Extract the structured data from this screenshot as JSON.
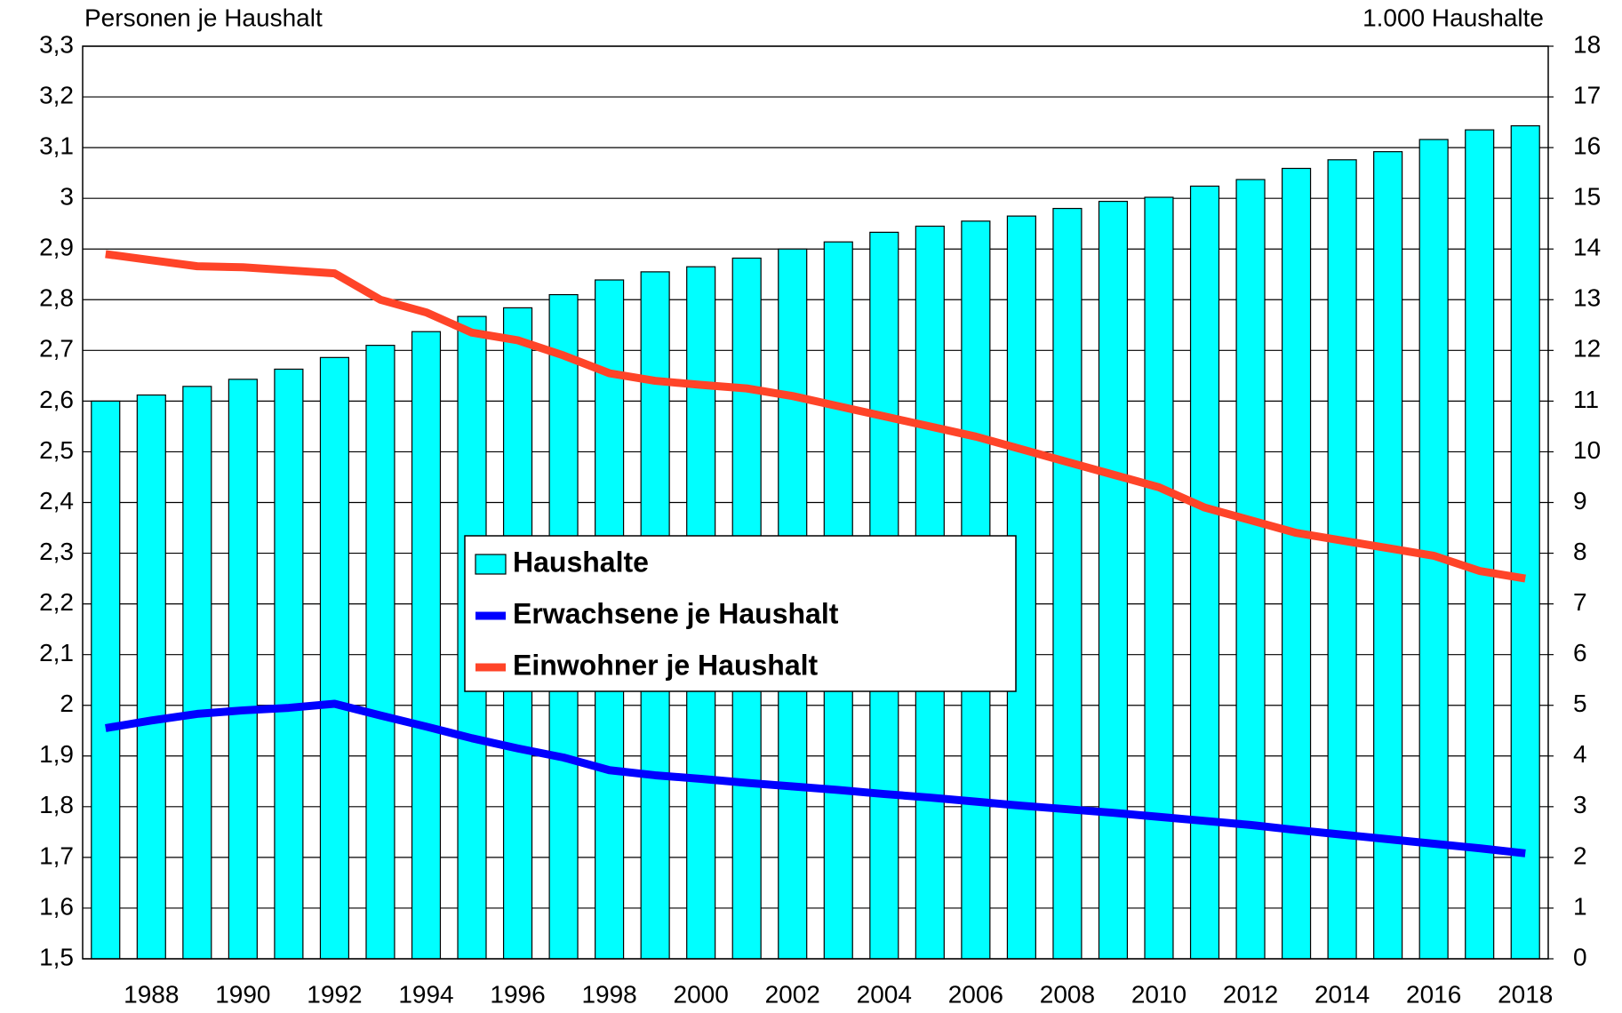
{
  "chart_data": {
    "type": "bar",
    "y_label": "Personen je Haushalt",
    "y2_label": "1.000 Haushalte",
    "categories": [
      null,
      "1988",
      null,
      "1990",
      null,
      "1992",
      null,
      "1994",
      null,
      "1996",
      null,
      "1998",
      null,
      "2000",
      null,
      "2002",
      null,
      "2004",
      null,
      "2006",
      null,
      "2008",
      null,
      "2010",
      null,
      "2012",
      null,
      "2014",
      null,
      "2016",
      null,
      "2018"
    ],
    "series": [
      {
        "name": "Haushalte",
        "type": "bar",
        "axis": "y2",
        "color": "#00ffff",
        "values": [
          11.0,
          11.12,
          11.29,
          11.43,
          11.63,
          11.86,
          12.1,
          12.37,
          12.67,
          12.84,
          13.1,
          13.39,
          13.55,
          13.65,
          13.82,
          14.0,
          14.14,
          14.33,
          14.45,
          14.55,
          14.65,
          14.8,
          14.94,
          15.02,
          15.24,
          15.37,
          15.59,
          15.76,
          15.92,
          16.16,
          16.35,
          16.43
        ]
      },
      {
        "name": "Erwachsene je Haushalt",
        "type": "line",
        "color": "#0000ff",
        "values": [
          1.955,
          1.97,
          1.983,
          1.99,
          1.995,
          2.003,
          1.98,
          1.958,
          1.935,
          1.915,
          1.897,
          1.872,
          1.862,
          1.855,
          1.847,
          1.84,
          1.833,
          1.825,
          1.818,
          1.81,
          1.802,
          1.795,
          1.788,
          1.78,
          1.772,
          1.764,
          1.754,
          1.745,
          1.736,
          1.727,
          1.718,
          1.708
        ]
      },
      {
        "name": "Einwohner je Haushalt",
        "type": "line",
        "color": "#ff4428",
        "values": [
          2.89,
          2.878,
          2.866,
          2.864,
          2.858,
          2.852,
          2.8,
          2.775,
          2.735,
          2.72,
          2.69,
          2.655,
          2.64,
          2.632,
          2.625,
          2.61,
          2.59,
          2.57,
          2.55,
          2.53,
          2.505,
          2.48,
          2.455,
          2.43,
          2.39,
          2.365,
          2.34,
          2.325,
          2.31,
          2.295,
          2.265,
          2.25
        ]
      }
    ],
    "ylim": [
      1.5,
      3.3
    ],
    "yticks": [
      {
        "value": 1.5,
        "label": "1,5"
      },
      {
        "value": 1.6,
        "label": "1,6"
      },
      {
        "value": 1.7,
        "label": "1,7"
      },
      {
        "value": 1.8,
        "label": "1,8"
      },
      {
        "value": 1.9,
        "label": "1,9"
      },
      2,
      {
        "value": 2.1,
        "label": "2,1"
      },
      {
        "value": 2.2,
        "label": "2,2"
      },
      {
        "value": 2.3,
        "label": "2,3"
      },
      {
        "value": 2.4,
        "label": "2,4"
      },
      {
        "value": 2.5,
        "label": "2,5"
      },
      {
        "value": 2.6,
        "label": "2,6"
      },
      {
        "value": 2.7,
        "label": "2,7"
      },
      {
        "value": 2.8,
        "label": "2,8"
      },
      {
        "value": 2.9,
        "label": "2,9"
      },
      3,
      {
        "value": 3.1,
        "label": "3,1"
      },
      {
        "value": 3.2,
        "label": "3,2"
      },
      {
        "value": 3.3,
        "label": "3,3"
      }
    ],
    "y2lim": [
      0,
      18
    ],
    "y2ticks": [
      0,
      1,
      2,
      3,
      4,
      5,
      6,
      7,
      8,
      9,
      10,
      11,
      12,
      13,
      14,
      15,
      16,
      17,
      18
    ],
    "grid": true
  }
}
